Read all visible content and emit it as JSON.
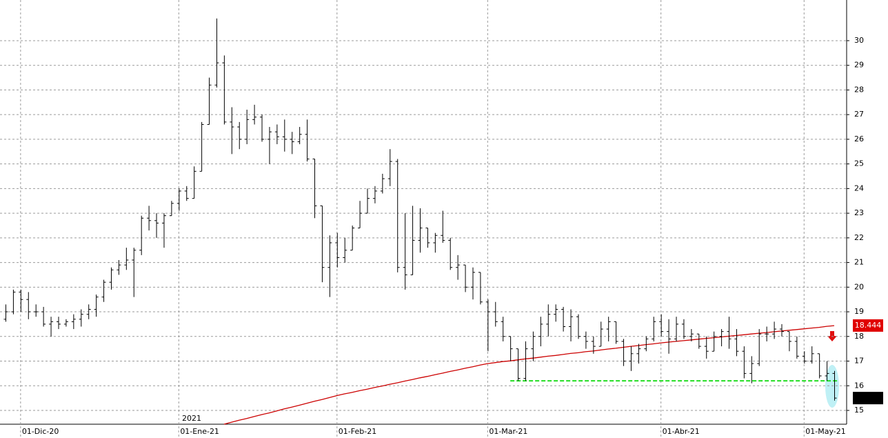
{
  "chart_data": {
    "type": "ohlc",
    "categories": [
      null,
      null,
      "01-Dic-20",
      null,
      null,
      null,
      null,
      null,
      null,
      null,
      null,
      null,
      null,
      null,
      null,
      null,
      null,
      null,
      null,
      null,
      null,
      null,
      null,
      "01-Ene-21",
      null,
      null,
      null,
      null,
      null,
      null,
      null,
      null,
      null,
      null,
      null,
      null,
      null,
      null,
      null,
      null,
      null,
      null,
      null,
      null,
      "01-Feb-21",
      null,
      null,
      null,
      null,
      null,
      null,
      null,
      null,
      null,
      null,
      null,
      null,
      null,
      null,
      null,
      null,
      null,
      null,
      null,
      "01-Mar-21",
      null,
      null,
      null,
      null,
      null,
      null,
      null,
      null,
      null,
      null,
      null,
      null,
      null,
      null,
      null,
      null,
      null,
      null,
      null,
      null,
      null,
      null,
      "01-Abr-21",
      null,
      null,
      null,
      null,
      null,
      null,
      null,
      null,
      null,
      null,
      null,
      null,
      null,
      null,
      null,
      null,
      null,
      null,
      "01-May-21",
      null,
      null,
      null,
      null
    ],
    "open": [
      18.7,
      19.0,
      19.8,
      19.5,
      19.0,
      19.0,
      18.5,
      18.6,
      18.5,
      18.6,
      18.7,
      18.9,
      19.1,
      19.6,
      20.2,
      20.7,
      20.9,
      21.1,
      21.5,
      22.8,
      22.7,
      22.6,
      22.9,
      23.4,
      23.9,
      23.6,
      24.7,
      26.6,
      28.2,
      29.1,
      26.7,
      26.5,
      26.0,
      26.8,
      26.9,
      26.0,
      26.3,
      26.1,
      26.0,
      25.9,
      26.2,
      25.2,
      23.3,
      20.8,
      21.8,
      21.2,
      21.5,
      22.4,
      23.0,
      23.6,
      23.9,
      24.4,
      25.1,
      20.8,
      20.5,
      21.9,
      22.4,
      21.8,
      22.1,
      21.9,
      20.8,
      20.9,
      20.0,
      20.6,
      19.4,
      19.0,
      18.6,
      18.0,
      17.5,
      16.3,
      17.5,
      18.0,
      18.5,
      18.9,
      19.1,
      18.4,
      18.8,
      18.0,
      17.8,
      17.6,
      18.3,
      18.6,
      17.8,
      17.0,
      17.3,
      17.5,
      17.9,
      18.6,
      18.2,
      17.9,
      18.5,
      18.0,
      18.1,
      17.6,
      17.4,
      18.0,
      18.2,
      17.9,
      17.4,
      16.5,
      16.9,
      18.1,
      18.1,
      18.3,
      18.2,
      17.8,
      17.2,
      17.0,
      17.3,
      16.4,
      16.5
    ],
    "high": [
      19.3,
      19.9,
      19.9,
      19.8,
      19.3,
      19.2,
      18.8,
      18.8,
      18.7,
      18.9,
      19.1,
      19.3,
      19.7,
      20.3,
      20.8,
      21.1,
      21.6,
      21.6,
      22.9,
      23.3,
      23.0,
      23.0,
      23.5,
      24.0,
      24.1,
      24.9,
      26.7,
      28.5,
      30.9,
      29.4,
      27.3,
      26.7,
      27.2,
      27.4,
      27.0,
      26.5,
      26.6,
      26.8,
      26.3,
      26.5,
      26.8,
      25.2,
      23.3,
      22.1,
      22.2,
      22.0,
      22.5,
      23.5,
      24.0,
      24.1,
      24.6,
      25.6,
      25.2,
      23.0,
      23.3,
      23.2,
      22.4,
      22.2,
      23.1,
      22.0,
      21.3,
      20.9,
      20.8,
      20.6,
      19.5,
      19.4,
      18.8,
      18.0,
      17.5,
      17.8,
      18.2,
      18.8,
      19.3,
      19.3,
      19.2,
      19.1,
      18.9,
      18.2,
      18.0,
      18.6,
      18.8,
      18.6,
      17.9,
      17.6,
      17.7,
      18.0,
      18.8,
      18.9,
      18.7,
      18.8,
      18.7,
      18.3,
      18.1,
      18.0,
      18.2,
      18.3,
      18.8,
      18.3,
      17.6,
      17.2,
      18.3,
      18.4,
      18.6,
      18.5,
      18.2,
      18.0,
      17.4,
      17.6,
      17.3,
      17.0,
      16.6
    ],
    "low": [
      18.6,
      18.9,
      19.0,
      18.7,
      18.8,
      18.4,
      18.0,
      18.3,
      18.4,
      18.3,
      18.4,
      18.7,
      18.8,
      19.4,
      19.9,
      20.5,
      20.7,
      19.6,
      21.3,
      22.3,
      22.0,
      21.6,
      22.9,
      23.1,
      23.5,
      23.6,
      24.7,
      26.6,
      28.1,
      26.6,
      25.4,
      25.6,
      25.8,
      26.6,
      25.9,
      25.0,
      25.8,
      25.5,
      25.4,
      25.8,
      25.1,
      22.8,
      20.2,
      19.6,
      20.8,
      21.0,
      21.5,
      22.4,
      23.0,
      23.4,
      23.8,
      24.1,
      20.6,
      19.9,
      20.5,
      21.4,
      21.6,
      21.4,
      21.8,
      20.7,
      20.3,
      19.8,
      19.5,
      19.3,
      17.4,
      18.4,
      17.8,
      17.0,
      16.2,
      16.2,
      17.0,
      17.6,
      18.0,
      18.6,
      18.2,
      17.8,
      17.9,
      17.5,
      17.3,
      17.6,
      17.8,
      17.7,
      16.8,
      16.6,
      16.9,
      17.4,
      17.8,
      18.0,
      17.3,
      17.8,
      17.9,
      17.8,
      17.5,
      17.1,
      17.4,
      17.6,
      17.5,
      17.2,
      16.3,
      16.1,
      16.8,
      17.8,
      17.9,
      18.0,
      17.4,
      17.1,
      16.9,
      16.9,
      16.3,
      16.2,
      15.4
    ],
    "close": [
      19.0,
      19.8,
      19.5,
      19.0,
      19.0,
      18.5,
      18.6,
      18.5,
      18.6,
      18.7,
      18.9,
      19.1,
      19.6,
      20.2,
      20.7,
      20.9,
      21.1,
      21.5,
      22.8,
      22.7,
      22.6,
      22.9,
      23.4,
      23.9,
      23.6,
      24.7,
      26.6,
      28.2,
      29.1,
      26.7,
      26.5,
      26.0,
      26.8,
      26.9,
      26.0,
      26.3,
      26.1,
      26.0,
      25.9,
      26.2,
      25.2,
      23.3,
      20.8,
      21.8,
      21.2,
      21.5,
      22.4,
      23.0,
      23.6,
      23.9,
      24.4,
      25.1,
      20.8,
      20.5,
      21.9,
      22.4,
      21.8,
      22.1,
      21.9,
      20.8,
      20.9,
      20.0,
      20.6,
      19.4,
      19.0,
      18.6,
      18.0,
      17.5,
      16.3,
      17.5,
      18.0,
      18.5,
      18.9,
      19.1,
      18.4,
      18.8,
      18.0,
      17.8,
      17.6,
      18.3,
      18.6,
      17.8,
      17.0,
      17.3,
      17.5,
      17.9,
      18.6,
      18.2,
      17.9,
      18.5,
      18.0,
      18.1,
      17.6,
      17.4,
      18.0,
      18.2,
      17.9,
      17.4,
      16.5,
      16.9,
      18.1,
      18.1,
      18.3,
      18.2,
      17.8,
      17.2,
      17.0,
      17.3,
      16.4,
      16.5,
      15.5
    ],
    "color": "#000000",
    "overlays": [
      {
        "type": "line",
        "color": "#cc0000",
        "values": [
          null,
          null,
          null,
          null,
          null,
          null,
          null,
          null,
          null,
          null,
          null,
          null,
          null,
          null,
          null,
          null,
          null,
          null,
          null,
          null,
          null,
          null,
          null,
          null,
          null,
          null,
          null,
          null,
          null,
          14.44,
          14.52,
          14.6,
          14.67,
          14.75,
          14.83,
          14.9,
          14.98,
          15.06,
          15.13,
          15.21,
          15.29,
          15.37,
          15.44,
          15.52,
          15.6,
          15.67,
          15.73,
          15.8,
          15.86,
          15.93,
          15.99,
          16.06,
          16.12,
          16.19,
          16.25,
          16.32,
          16.38,
          16.45,
          16.51,
          16.58,
          16.64,
          16.71,
          16.77,
          16.84,
          16.9,
          16.94,
          16.98,
          17.01,
          17.05,
          17.09,
          17.12,
          17.16,
          17.2,
          17.23,
          17.27,
          17.31,
          17.34,
          17.38,
          17.41,
          17.45,
          17.49,
          17.52,
          17.56,
          17.6,
          17.63,
          17.67,
          17.7,
          17.74,
          17.77,
          17.8,
          17.83,
          17.86,
          17.89,
          17.92,
          17.95,
          17.98,
          18.01,
          18.04,
          18.07,
          18.1,
          18.13,
          18.16,
          18.19,
          18.22,
          18.25,
          18.28,
          18.31,
          18.34,
          18.37,
          18.41,
          18.44
        ]
      }
    ],
    "hlines": [
      {
        "value": 16.2,
        "color": "#22dd22"
      }
    ],
    "annotations": [
      {
        "value": 18.444,
        "label": "18.444",
        "color": "#e00000"
      }
    ],
    "year_label": "2021",
    "ylim": [
      14.44,
      31.65
    ],
    "yticks": [
      15,
      16,
      17,
      18,
      19,
      20,
      21,
      22,
      23,
      24,
      25,
      26,
      27,
      28,
      29,
      30
    ],
    "grid": true
  }
}
